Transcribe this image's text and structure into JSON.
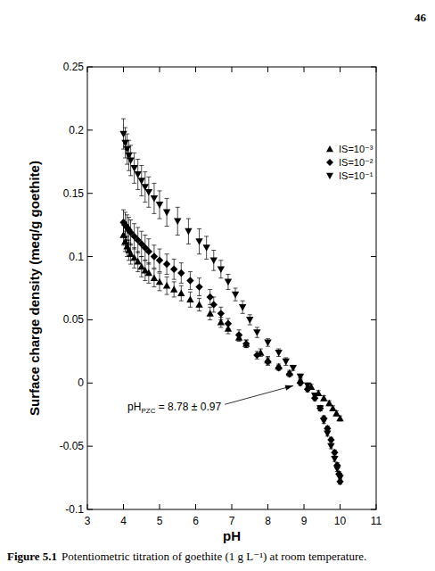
{
  "chart_data": {
    "type": "scatter",
    "page_number": "46",
    "xlabel": "pH",
    "ylabel": "Surface charge density (meq/g goethite)",
    "caption": {
      "label": "Figure 5.1",
      "text": "Potentiometric titration of goethite (1 g L⁻¹) at room temperature."
    },
    "xlim": [
      3,
      11
    ],
    "ylim": [
      -0.1,
      0.25
    ],
    "xticks": [
      3,
      4,
      5,
      6,
      7,
      8,
      9,
      10,
      11
    ],
    "yticks": [
      -0.1,
      -0.05,
      0,
      0.05,
      0.1,
      0.15,
      0.2,
      0.25
    ],
    "grid": false,
    "legend": "top-right",
    "annotations": [
      {
        "text": "pH",
        "subscript": "PZC",
        "suffix": " = 8.78 ± 0.97",
        "x": 8.78,
        "y": 0
      }
    ],
    "series": [
      {
        "name": "IS=10⁻³",
        "color": "#000000",
        "marker": "triangle-up",
        "x": [
          4.0,
          4.05,
          4.1,
          4.15,
          4.2,
          4.3,
          4.4,
          4.5,
          4.6,
          4.7,
          4.85,
          5.0,
          5.2,
          5.4,
          5.6,
          5.85,
          6.1,
          6.4,
          6.7,
          6.9,
          7.2,
          7.4,
          7.8,
          8.0,
          8.3,
          8.6,
          8.9,
          9.2,
          9.4,
          9.55,
          9.7,
          9.8,
          9.9,
          10.0
        ],
        "values": [
          0.117,
          0.112,
          0.108,
          0.105,
          0.102,
          0.099,
          0.096,
          0.092,
          0.089,
          0.087,
          0.083,
          0.08,
          0.077,
          0.074,
          0.071,
          0.066,
          0.062,
          0.055,
          0.048,
          0.043,
          0.036,
          0.031,
          0.024,
          0.018,
          0.013,
          0.008,
          0.002,
          -0.003,
          -0.008,
          -0.012,
          -0.016,
          -0.02,
          -0.024,
          -0.028
        ],
        "errors": [
          0.008,
          0.008,
          0.008,
          0.008,
          0.008,
          0.008,
          0.008,
          0.008,
          0.008,
          0.008,
          0.007,
          0.007,
          0.007,
          0.006,
          0.006,
          0.006,
          0.005,
          0.005,
          0.004,
          0.004,
          0.003,
          0.003,
          0.003,
          0.003,
          0.002,
          0.002,
          0.002,
          0.002,
          0.002,
          0.002,
          0.002,
          0.002,
          0.002,
          0.002
        ]
      },
      {
        "name": "IS=10⁻²",
        "color": "#000000",
        "marker": "diamond",
        "x": [
          4.0,
          4.05,
          4.1,
          4.15,
          4.2,
          4.3,
          4.4,
          4.5,
          4.6,
          4.7,
          4.85,
          5.0,
          5.2,
          5.4,
          5.6,
          5.85,
          6.1,
          6.4,
          6.5,
          6.7,
          6.9,
          7.2,
          7.4,
          7.7,
          8.0,
          8.3,
          8.6,
          8.9,
          9.1,
          9.3,
          9.45,
          9.55,
          9.65,
          9.75,
          9.85,
          9.92,
          9.97,
          10.0
        ],
        "values": [
          0.127,
          0.125,
          0.123,
          0.121,
          0.119,
          0.116,
          0.113,
          0.11,
          0.107,
          0.104,
          0.1,
          0.097,
          0.094,
          0.09,
          0.087,
          0.081,
          0.076,
          0.068,
          0.062,
          0.055,
          0.047,
          0.038,
          0.031,
          0.022,
          0.017,
          0.012,
          0.007,
          0,
          -0.005,
          -0.012,
          -0.02,
          -0.028,
          -0.036,
          -0.045,
          -0.055,
          -0.065,
          -0.072,
          -0.078
        ],
        "errors": [
          0.01,
          0.01,
          0.01,
          0.01,
          0.01,
          0.01,
          0.01,
          0.01,
          0.01,
          0.01,
          0.009,
          0.009,
          0.008,
          0.008,
          0.008,
          0.007,
          0.007,
          0.006,
          0.006,
          0.005,
          0.004,
          0.004,
          0.003,
          0.003,
          0.003,
          0.002,
          0.002,
          0.002,
          0.002,
          0.002,
          0.002,
          0.002,
          0.002,
          0.002,
          0.002,
          0.002,
          0.002,
          0.002
        ]
      },
      {
        "name": "IS=10⁻¹",
        "color": "#000000",
        "marker": "triangle-down",
        "x": [
          4.0,
          4.05,
          4.1,
          4.15,
          4.2,
          4.3,
          4.4,
          4.5,
          4.6,
          4.7,
          4.85,
          5.0,
          5.2,
          5.5,
          5.8,
          6.1,
          6.3,
          6.5,
          6.7,
          6.9,
          7.1,
          7.3,
          7.5,
          7.7,
          8.0,
          8.3,
          8.5,
          8.7,
          8.9,
          9.1,
          9.3,
          9.45,
          9.55,
          9.65,
          9.75,
          9.85,
          9.92,
          10.0
        ],
        "values": [
          0.197,
          0.19,
          0.185,
          0.18,
          0.176,
          0.17,
          0.165,
          0.16,
          0.155,
          0.151,
          0.146,
          0.141,
          0.135,
          0.128,
          0.12,
          0.112,
          0.107,
          0.097,
          0.09,
          0.08,
          0.07,
          0.06,
          0.05,
          0.04,
          0.032,
          0.024,
          0.017,
          0.012,
          0.005,
          -0.002,
          -0.01,
          -0.02,
          -0.03,
          -0.04,
          -0.05,
          -0.06,
          -0.068,
          -0.075
        ],
        "errors": [
          0.012,
          0.012,
          0.012,
          0.012,
          0.012,
          0.012,
          0.012,
          0.012,
          0.012,
          0.012,
          0.012,
          0.011,
          0.011,
          0.011,
          0.01,
          0.01,
          0.009,
          0.008,
          0.007,
          0.006,
          0.005,
          0.005,
          0.004,
          0.004,
          0.003,
          0.003,
          0.003,
          0.002,
          0.002,
          0.002,
          0.002,
          0.002,
          0.002,
          0.002,
          0.002,
          0.002,
          0.002,
          0.002
        ]
      }
    ]
  }
}
